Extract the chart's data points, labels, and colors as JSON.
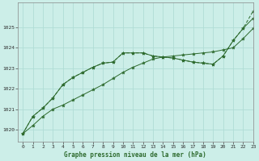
{
  "title": "Graphe pression niveau de la mer (hPa)",
  "bg_color": "#cceee8",
  "grid_color": "#b0ddd6",
  "line_color": "#2d6a2d",
  "xlim": [
    -0.5,
    23
  ],
  "ylim": [
    1019.4,
    1026.2
  ],
  "yticks": [
    1020,
    1021,
    1022,
    1023,
    1024,
    1025
  ],
  "xticks": [
    0,
    1,
    2,
    3,
    4,
    5,
    6,
    7,
    8,
    9,
    10,
    11,
    12,
    13,
    14,
    15,
    16,
    17,
    18,
    19,
    20,
    21,
    22,
    23
  ],
  "series1_x": [
    0,
    1,
    2,
    3,
    4,
    5,
    6,
    7,
    8,
    9,
    10,
    11,
    12,
    13,
    14,
    15,
    16,
    17,
    18,
    19,
    20,
    21,
    22,
    23
  ],
  "series1_y": [
    1019.8,
    1020.2,
    1020.65,
    1021.0,
    1021.2,
    1021.45,
    1021.7,
    1021.95,
    1022.2,
    1022.5,
    1022.8,
    1023.05,
    1023.25,
    1023.45,
    1023.55,
    1023.6,
    1023.65,
    1023.7,
    1023.75,
    1023.8,
    1023.9,
    1024.0,
    1024.45,
    1024.95
  ],
  "series2_x": [
    0,
    1,
    2,
    3,
    4,
    5,
    6,
    7,
    8,
    9,
    10,
    11,
    12,
    13,
    14,
    15,
    16,
    17,
    18,
    19,
    20,
    21,
    22,
    23
  ],
  "series2_y": [
    1019.8,
    1020.65,
    1021.05,
    1021.55,
    1022.2,
    1022.55,
    1022.8,
    1023.05,
    1023.25,
    1023.3,
    1023.75,
    1023.75,
    1023.75,
    1023.6,
    1023.55,
    1023.5,
    1023.4,
    1023.3,
    1023.25,
    1023.2,
    1023.6,
    1024.35,
    1024.95,
    1025.8
  ],
  "series3_x": [
    0,
    1,
    2,
    3,
    4,
    5,
    6,
    7,
    8,
    9,
    10,
    11,
    12,
    13,
    14,
    15,
    16,
    17,
    18,
    19,
    20,
    21,
    22,
    23
  ],
  "series3_y": [
    1019.8,
    1020.65,
    1021.05,
    1021.55,
    1022.2,
    1022.55,
    1022.8,
    1023.05,
    1023.25,
    1023.3,
    1023.75,
    1023.75,
    1023.75,
    1023.6,
    1023.55,
    1023.5,
    1023.4,
    1023.3,
    1023.25,
    1023.2,
    1023.6,
    1024.35,
    1024.95,
    1025.45
  ]
}
